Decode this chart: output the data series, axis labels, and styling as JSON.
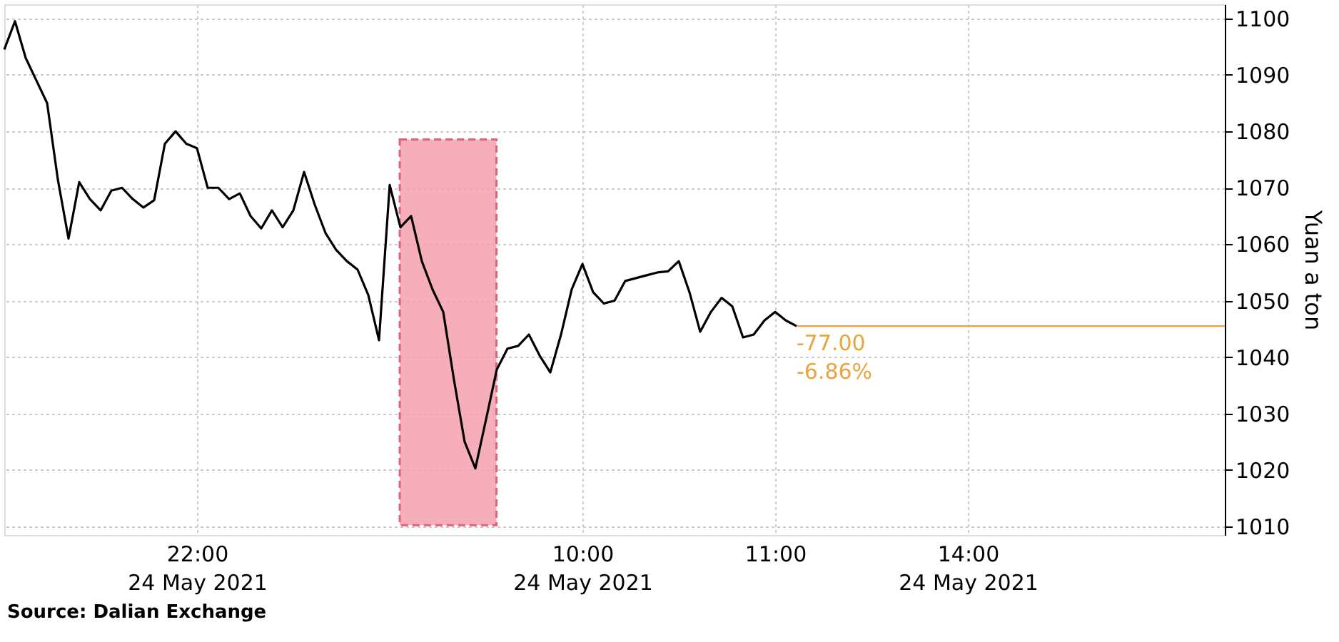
{
  "chart_data": {
    "type": "line",
    "ylabel": "Yuan a ton",
    "annotations": [
      "Source: Dalian Exchange",
      {
        "text": "-77.00\n-6.86%",
        "y": 1045.5
      }
    ],
    "categories": [
      null,
      null,
      null,
      null,
      null,
      null,
      null,
      null,
      null,
      null,
      null,
      null,
      null,
      null,
      null,
      null,
      null,
      null,
      "22:00\n24 May 2021",
      null,
      null,
      null,
      null,
      null,
      null,
      null,
      null,
      null,
      null,
      null,
      null,
      null,
      null,
      null,
      null,
      null,
      null,
      null,
      null,
      null,
      null,
      null,
      null,
      null,
      null,
      null,
      null,
      null,
      null,
      null,
      null,
      null,
      null,
      null,
      "10:00\n24 May 2021",
      null,
      null,
      null,
      null,
      null,
      null,
      null,
      null,
      null,
      null,
      null,
      null,
      null,
      null,
      null,
      null,
      null,
      "11:00",
      null,
      null,
      null,
      null,
      null,
      null,
      null,
      null,
      null,
      null,
      null,
      null,
      null,
      null,
      null,
      null,
      null,
      "14:00\n24 May 2021",
      null,
      null,
      null,
      null,
      null,
      null,
      null,
      null,
      null,
      null,
      null,
      null,
      null,
      null,
      null,
      null,
      null,
      null,
      null,
      null,
      null,
      null,
      null,
      null
    ],
    "ylim": [
      1008.5,
      1102.5
    ],
    "yticks": [
      1010,
      1020,
      1030,
      1040,
      1050,
      1060,
      1070,
      1080,
      1090,
      1100
    ],
    "grid": true,
    "line_style": "solid",
    "marker": "none",
    "series": [
      {
        "color": "#000000",
        "values": [
          1094.5,
          1099.5,
          1093,
          1089,
          1085,
          1071.5,
          1061,
          1071,
          1068,
          1066,
          1069.5,
          1070,
          1068,
          1066.5,
          1067.8,
          1077.8,
          1080,
          1077.8,
          1077,
          1070,
          1070,
          1068,
          1069,
          1065,
          1062.8,
          1066,
          1063,
          1066,
          1072.8,
          1067,
          1062,
          1059,
          1057,
          1055.5,
          1051,
          1043,
          1070.5,
          1063,
          1065,
          1057,
          1052,
          1048,
          1036,
          1025,
          1020.3,
          1029,
          1037.8,
          1041.5,
          1042,
          1044,
          1040.3,
          1037.3,
          1044,
          1052,
          1056.5,
          1051.5,
          1049.5,
          1050,
          1053.5,
          1054,
          1054.5,
          1055,
          1055.2,
          1057,
          1051.5,
          1044.5,
          1048,
          1050.5,
          1049,
          1043.5,
          1044,
          1046.5,
          1048,
          1046.5,
          1045.5,
          null,
          null,
          null,
          null,
          null,
          null,
          null,
          null,
          null,
          null,
          null,
          null,
          null,
          null,
          null,
          null,
          null,
          null,
          null,
          null,
          null,
          null,
          null,
          null,
          null,
          null,
          null,
          null,
          null,
          null,
          null,
          null,
          null,
          null,
          null,
          null,
          null,
          null,
          null,
          null
        ]
      }
    ],
    "ref_lines": [
      {
        "axis": "y",
        "value": 1045.5,
        "color": "#e8a33b",
        "line_style": "solid"
      }
    ]
  }
}
